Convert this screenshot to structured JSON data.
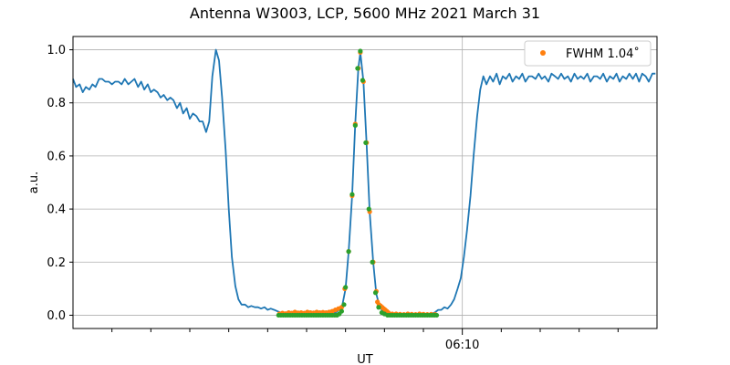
{
  "chart_data": {
    "type": "line",
    "title": "Antenna W3003, LCP, 5600 MHz 2021 March 31",
    "xlabel": "UT",
    "ylabel": "a.u.",
    "x_unit": "minutes UT",
    "xlim": [
      360,
      375
    ],
    "ylim": [
      -0.05,
      1.05
    ],
    "x_ticks": [
      {
        "x": 370,
        "label": "06:10"
      }
    ],
    "x_minor_ticks": [
      361,
      362,
      363,
      364,
      365,
      366,
      367,
      368,
      369,
      371,
      372,
      373,
      374
    ],
    "y_ticks": [
      0.0,
      0.2,
      0.4,
      0.6,
      0.8,
      1.0
    ],
    "y_tick_labels": [
      "0.0",
      "0.2",
      "0.4",
      "0.6",
      "0.8",
      "1.0"
    ],
    "grid": true,
    "legend_position": "top-right",
    "series": [
      {
        "kind": "line",
        "color": "#1f77b4",
        "points": [
          [
            360.0,
            0.89
          ],
          [
            360.08,
            0.86
          ],
          [
            360.17,
            0.87
          ],
          [
            360.25,
            0.84
          ],
          [
            360.33,
            0.86
          ],
          [
            360.42,
            0.85
          ],
          [
            360.5,
            0.87
          ],
          [
            360.58,
            0.86
          ],
          [
            360.67,
            0.89
          ],
          [
            360.75,
            0.89
          ],
          [
            360.83,
            0.88
          ],
          [
            360.92,
            0.88
          ],
          [
            361.0,
            0.87
          ],
          [
            361.08,
            0.88
          ],
          [
            361.17,
            0.88
          ],
          [
            361.25,
            0.87
          ],
          [
            361.33,
            0.89
          ],
          [
            361.42,
            0.87
          ],
          [
            361.5,
            0.88
          ],
          [
            361.58,
            0.89
          ],
          [
            361.67,
            0.86
          ],
          [
            361.75,
            0.88
          ],
          [
            361.83,
            0.85
          ],
          [
            361.92,
            0.87
          ],
          [
            362.0,
            0.84
          ],
          [
            362.08,
            0.85
          ],
          [
            362.17,
            0.84
          ],
          [
            362.25,
            0.82
          ],
          [
            362.33,
            0.83
          ],
          [
            362.42,
            0.81
          ],
          [
            362.5,
            0.82
          ],
          [
            362.58,
            0.81
          ],
          [
            362.67,
            0.78
          ],
          [
            362.75,
            0.8
          ],
          [
            362.83,
            0.76
          ],
          [
            362.92,
            0.78
          ],
          [
            363.0,
            0.74
          ],
          [
            363.08,
            0.76
          ],
          [
            363.17,
            0.75
          ],
          [
            363.25,
            0.73
          ],
          [
            363.33,
            0.73
          ],
          [
            363.42,
            0.69
          ],
          [
            363.5,
            0.73
          ],
          [
            363.58,
            0.9
          ],
          [
            363.67,
            1.0
          ],
          [
            363.75,
            0.96
          ],
          [
            363.83,
            0.82
          ],
          [
            363.92,
            0.62
          ],
          [
            364.0,
            0.4
          ],
          [
            364.08,
            0.22
          ],
          [
            364.17,
            0.11
          ],
          [
            364.25,
            0.06
          ],
          [
            364.33,
            0.04
          ],
          [
            364.42,
            0.04
          ],
          [
            364.5,
            0.03
          ],
          [
            364.58,
            0.035
          ],
          [
            364.67,
            0.03
          ],
          [
            364.75,
            0.03
          ],
          [
            364.83,
            0.025
          ],
          [
            364.92,
            0.03
          ],
          [
            365.0,
            0.02
          ],
          [
            365.08,
            0.025
          ],
          [
            365.17,
            0.02
          ],
          [
            365.25,
            0.015
          ],
          [
            365.33,
            0.01
          ],
          [
            365.42,
            0.01
          ],
          [
            365.5,
            0.005
          ],
          [
            365.58,
            0.005
          ],
          [
            365.67,
            0.0
          ],
          [
            365.75,
            0.005
          ],
          [
            365.83,
            0.005
          ],
          [
            365.92,
            0.0
          ],
          [
            366.0,
            0.005
          ],
          [
            366.08,
            0.0
          ],
          [
            366.17,
            0.005
          ],
          [
            366.25,
            0.0
          ],
          [
            366.33,
            0.005
          ],
          [
            366.42,
            0.005
          ],
          [
            366.5,
            0.0
          ],
          [
            366.58,
            0.005
          ],
          [
            366.67,
            0.005
          ],
          [
            366.75,
            0.01
          ],
          [
            366.83,
            0.02
          ],
          [
            366.92,
            0.04
          ],
          [
            367.0,
            0.1
          ],
          [
            367.08,
            0.24
          ],
          [
            367.17,
            0.45
          ],
          [
            367.25,
            0.72
          ],
          [
            367.33,
            0.93
          ],
          [
            367.38,
            0.99
          ],
          [
            367.46,
            0.88
          ],
          [
            367.54,
            0.65
          ],
          [
            367.62,
            0.39
          ],
          [
            367.71,
            0.2
          ],
          [
            367.79,
            0.08
          ],
          [
            367.88,
            0.03
          ],
          [
            367.96,
            0.015
          ],
          [
            368.04,
            0.01
          ],
          [
            368.12,
            0.005
          ],
          [
            368.21,
            0.005
          ],
          [
            368.29,
            0.0
          ],
          [
            368.38,
            0.0
          ],
          [
            368.46,
            0.005
          ],
          [
            368.54,
            0.0
          ],
          [
            368.62,
            0.0
          ],
          [
            368.71,
            0.005
          ],
          [
            368.79,
            0.0
          ],
          [
            368.88,
            0.005
          ],
          [
            368.96,
            0.0
          ],
          [
            369.04,
            0.005
          ],
          [
            369.12,
            0.0
          ],
          [
            369.21,
            0.005
          ],
          [
            369.29,
            0.01
          ],
          [
            369.38,
            0.02
          ],
          [
            369.46,
            0.02
          ],
          [
            369.54,
            0.03
          ],
          [
            369.62,
            0.025
          ],
          [
            369.71,
            0.04
          ],
          [
            369.79,
            0.06
          ],
          [
            369.88,
            0.1
          ],
          [
            369.96,
            0.14
          ],
          [
            370.04,
            0.22
          ],
          [
            370.12,
            0.32
          ],
          [
            370.21,
            0.45
          ],
          [
            370.29,
            0.6
          ],
          [
            370.38,
            0.75
          ],
          [
            370.46,
            0.85
          ],
          [
            370.54,
            0.9
          ],
          [
            370.62,
            0.87
          ],
          [
            370.71,
            0.9
          ],
          [
            370.79,
            0.88
          ],
          [
            370.88,
            0.91
          ],
          [
            370.96,
            0.87
          ],
          [
            371.04,
            0.9
          ],
          [
            371.12,
            0.89
          ],
          [
            371.21,
            0.91
          ],
          [
            371.29,
            0.88
          ],
          [
            371.38,
            0.9
          ],
          [
            371.46,
            0.89
          ],
          [
            371.54,
            0.91
          ],
          [
            371.62,
            0.88
          ],
          [
            371.71,
            0.9
          ],
          [
            371.79,
            0.9
          ],
          [
            371.88,
            0.89
          ],
          [
            371.96,
            0.91
          ],
          [
            372.04,
            0.89
          ],
          [
            372.12,
            0.9
          ],
          [
            372.21,
            0.88
          ],
          [
            372.29,
            0.91
          ],
          [
            372.38,
            0.9
          ],
          [
            372.46,
            0.89
          ],
          [
            372.54,
            0.91
          ],
          [
            372.62,
            0.89
          ],
          [
            372.71,
            0.9
          ],
          [
            372.79,
            0.88
          ],
          [
            372.88,
            0.91
          ],
          [
            372.96,
            0.89
          ],
          [
            373.04,
            0.9
          ],
          [
            373.12,
            0.89
          ],
          [
            373.21,
            0.91
          ],
          [
            373.29,
            0.88
          ],
          [
            373.38,
            0.9
          ],
          [
            373.46,
            0.9
          ],
          [
            373.54,
            0.89
          ],
          [
            373.62,
            0.91
          ],
          [
            373.71,
            0.88
          ],
          [
            373.79,
            0.9
          ],
          [
            373.88,
            0.89
          ],
          [
            373.96,
            0.91
          ],
          [
            374.04,
            0.88
          ],
          [
            374.12,
            0.9
          ],
          [
            374.21,
            0.89
          ],
          [
            374.29,
            0.91
          ],
          [
            374.38,
            0.89
          ],
          [
            374.46,
            0.91
          ],
          [
            374.54,
            0.88
          ],
          [
            374.62,
            0.91
          ],
          [
            374.71,
            0.9
          ],
          [
            374.79,
            0.88
          ],
          [
            374.88,
            0.91
          ],
          [
            374.96,
            0.91
          ]
        ]
      },
      {
        "kind": "scatter",
        "name": "FWHM 1.04˚",
        "color": "#ff7f0e",
        "points": [
          [
            365.3,
            0.005
          ],
          [
            365.38,
            0.008
          ],
          [
            365.46,
            0.006
          ],
          [
            365.54,
            0.01
          ],
          [
            365.62,
            0.008
          ],
          [
            365.7,
            0.012
          ],
          [
            365.78,
            0.009
          ],
          [
            365.86,
            0.01
          ],
          [
            365.94,
            0.008
          ],
          [
            366.02,
            0.012
          ],
          [
            366.1,
            0.01
          ],
          [
            366.18,
            0.009
          ],
          [
            366.26,
            0.012
          ],
          [
            366.34,
            0.01
          ],
          [
            366.42,
            0.011
          ],
          [
            366.5,
            0.01
          ],
          [
            366.58,
            0.012
          ],
          [
            366.66,
            0.015
          ],
          [
            366.74,
            0.02
          ],
          [
            366.82,
            0.025
          ],
          [
            366.9,
            0.03
          ],
          [
            366.98,
            0.1
          ],
          [
            367.08,
            0.24
          ],
          [
            367.17,
            0.45
          ],
          [
            367.25,
            0.72
          ],
          [
            367.33,
            0.93
          ],
          [
            367.38,
            0.99
          ],
          [
            367.46,
            0.88
          ],
          [
            367.54,
            0.65
          ],
          [
            367.62,
            0.39
          ],
          [
            367.71,
            0.2
          ],
          [
            367.79,
            0.09
          ],
          [
            367.82,
            0.05
          ],
          [
            367.86,
            0.04
          ],
          [
            367.9,
            0.035
          ],
          [
            367.94,
            0.03
          ],
          [
            367.98,
            0.025
          ],
          [
            368.02,
            0.02
          ],
          [
            368.06,
            0.015
          ],
          [
            368.1,
            0.01
          ],
          [
            368.2,
            0.005
          ],
          [
            368.3,
            0.005
          ],
          [
            368.4,
            0.004
          ],
          [
            368.5,
            0.003
          ],
          [
            368.6,
            0.005
          ],
          [
            368.7,
            0.004
          ],
          [
            368.8,
            0.003
          ],
          [
            368.9,
            0.005
          ],
          [
            369.0,
            0.004
          ],
          [
            369.1,
            0.003
          ],
          [
            369.2,
            0.004
          ],
          [
            369.3,
            0.003
          ]
        ]
      },
      {
        "kind": "scatter",
        "color": "#2ca02c",
        "points": [
          [
            365.28,
            0.0
          ],
          [
            365.34,
            0.0
          ],
          [
            365.4,
            0.0
          ],
          [
            365.46,
            0.0
          ],
          [
            365.52,
            0.0
          ],
          [
            365.58,
            0.0
          ],
          [
            365.64,
            0.0
          ],
          [
            365.7,
            0.0
          ],
          [
            365.76,
            0.0
          ],
          [
            365.82,
            0.0
          ],
          [
            365.88,
            0.0
          ],
          [
            365.94,
            0.0
          ],
          [
            366.0,
            0.0
          ],
          [
            366.06,
            0.0
          ],
          [
            366.12,
            0.0
          ],
          [
            366.18,
            0.0
          ],
          [
            366.24,
            0.0
          ],
          [
            366.3,
            0.0
          ],
          [
            366.36,
            0.0
          ],
          [
            366.42,
            0.0
          ],
          [
            366.48,
            0.0
          ],
          [
            366.54,
            0.0
          ],
          [
            366.6,
            0.0
          ],
          [
            366.66,
            0.0
          ],
          [
            366.72,
            0.0
          ],
          [
            366.78,
            0.0
          ],
          [
            366.84,
            0.005
          ],
          [
            366.9,
            0.015
          ],
          [
            366.96,
            0.04
          ],
          [
            367.0,
            0.105
          ],
          [
            367.08,
            0.24
          ],
          [
            367.17,
            0.455
          ],
          [
            367.25,
            0.715
          ],
          [
            367.31,
            0.93
          ],
          [
            367.38,
            0.995
          ],
          [
            367.44,
            0.885
          ],
          [
            367.52,
            0.65
          ],
          [
            367.6,
            0.4
          ],
          [
            367.69,
            0.2
          ],
          [
            367.77,
            0.085
          ],
          [
            367.85,
            0.03
          ],
          [
            367.93,
            0.01
          ],
          [
            368.0,
            0.005
          ],
          [
            368.08,
            0.0
          ],
          [
            368.14,
            0.0
          ],
          [
            368.2,
            0.0
          ],
          [
            368.26,
            0.0
          ],
          [
            368.32,
            0.0
          ],
          [
            368.38,
            0.0
          ],
          [
            368.44,
            0.0
          ],
          [
            368.5,
            0.0
          ],
          [
            368.56,
            0.0
          ],
          [
            368.62,
            0.0
          ],
          [
            368.68,
            0.0
          ],
          [
            368.74,
            0.0
          ],
          [
            368.8,
            0.0
          ],
          [
            368.86,
            0.0
          ],
          [
            368.92,
            0.0
          ],
          [
            368.98,
            0.0
          ],
          [
            369.04,
            0.0
          ],
          [
            369.1,
            0.0
          ],
          [
            369.16,
            0.0
          ],
          [
            369.22,
            0.0
          ],
          [
            369.28,
            0.0
          ],
          [
            369.34,
            0.0
          ]
        ]
      }
    ]
  }
}
